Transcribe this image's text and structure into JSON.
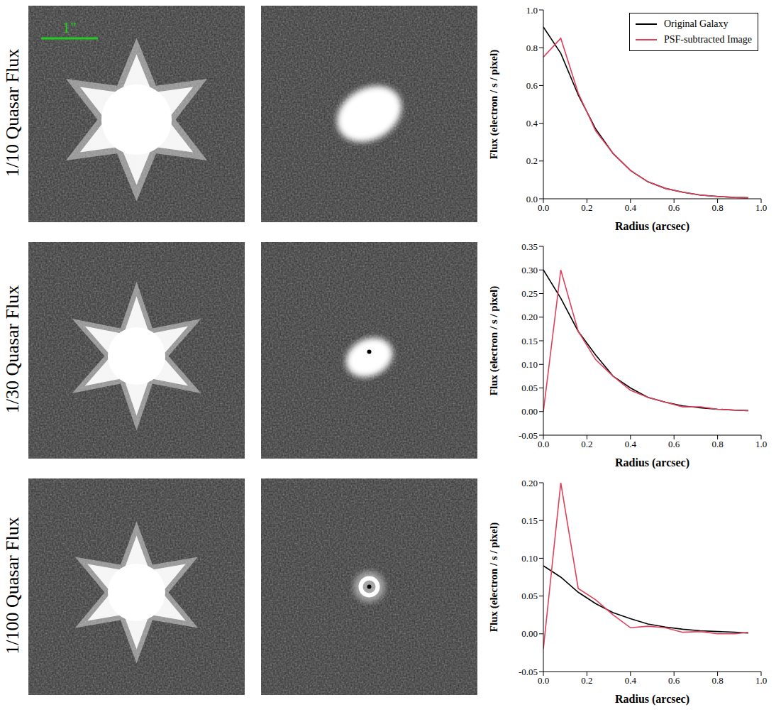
{
  "images": {
    "row_labels": [
      "1/10 Quasar Flux",
      "1/30 Quasar Flux",
      "1/100 Quasar Flux"
    ],
    "scale_bar_label": "1\""
  },
  "chart_data": [
    {
      "type": "line",
      "x_label": "Radius (arcsec)",
      "y_label": "Flux (electron / s / pixel)",
      "x": [
        0,
        0.08,
        0.16,
        0.24,
        0.32,
        0.4,
        0.48,
        0.56,
        0.64,
        0.72,
        0.8,
        0.88,
        0.94
      ],
      "series": [
        {
          "name": "Original Galaxy",
          "color": "#000000",
          "values": [
            0.91,
            0.77,
            0.55,
            0.37,
            0.24,
            0.15,
            0.09,
            0.055,
            0.035,
            0.02,
            0.012,
            0.007,
            0.005
          ]
        },
        {
          "name": "PSF-subtracted Image",
          "color": "#e0405a",
          "values": [
            0.75,
            0.85,
            0.56,
            0.36,
            0.24,
            0.15,
            0.09,
            0.055,
            0.035,
            0.02,
            0.012,
            0.007,
            0.005
          ]
        }
      ],
      "xlim": [
        0,
        1
      ],
      "ylim": [
        0,
        1
      ],
      "xticks": [
        {
          "value": 0,
          "label": "0.0"
        },
        0.2,
        0.4,
        0.6,
        0.8,
        {
          "value": 1,
          "label": "1.0"
        }
      ],
      "yticks": [
        {
          "value": 0,
          "label": "0.0"
        },
        0.2,
        0.4,
        0.6,
        0.8,
        {
          "value": 1,
          "label": "1.0"
        }
      ],
      "grid": false,
      "legend": "upper right"
    },
    {
      "type": "line",
      "x_label": "Radius (arcsec)",
      "y_label": "Flux (electron / s / pixel)",
      "x": [
        0,
        0.08,
        0.16,
        0.24,
        0.32,
        0.4,
        0.48,
        0.56,
        0.64,
        0.72,
        0.8,
        0.88,
        0.94
      ],
      "series": [
        {
          "name": "Original Galaxy",
          "color": "#000000",
          "values": [
            0.3,
            0.24,
            0.17,
            0.12,
            0.075,
            0.05,
            0.03,
            0.02,
            0.012,
            0.008,
            0.005,
            0.003,
            0.002
          ]
        },
        {
          "name": "PSF-subtracted Image",
          "color": "#e0405a",
          "values": [
            0.0,
            0.3,
            0.17,
            0.11,
            0.075,
            0.045,
            0.03,
            0.02,
            0.01,
            0.01,
            0.005,
            0.003,
            0.002
          ]
        }
      ],
      "xlim": [
        0,
        1
      ],
      "ylim": [
        -0.05,
        0.35
      ],
      "xticks": [
        {
          "value": 0,
          "label": "0.0"
        },
        0.2,
        0.4,
        0.6,
        0.8,
        {
          "value": 1,
          "label": "1.0"
        }
      ],
      "yticks": [
        -0.05,
        {
          "value": 0,
          "label": "0.00"
        },
        0.05,
        {
          "value": 0.1,
          "label": "0.10"
        },
        0.15,
        {
          "value": 0.2,
          "label": "0.20"
        },
        0.25,
        {
          "value": 0.3,
          "label": "0.30"
        },
        0.35
      ],
      "grid": false
    },
    {
      "type": "line",
      "x_label": "Radius (arcsec)",
      "y_label": "Flux (electron / s / pixel)",
      "x": [
        0,
        0.08,
        0.16,
        0.24,
        0.32,
        0.4,
        0.48,
        0.56,
        0.64,
        0.72,
        0.8,
        0.88,
        0.94
      ],
      "series": [
        {
          "name": "Original Galaxy",
          "color": "#000000",
          "values": [
            0.09,
            0.075,
            0.055,
            0.04,
            0.028,
            0.02,
            0.013,
            0.009,
            0.006,
            0.004,
            0.003,
            0.002,
            0.001
          ]
        },
        {
          "name": "PSF-subtracted Image",
          "color": "#e0405a",
          "values": [
            -0.02,
            0.2,
            0.06,
            0.045,
            0.025,
            0.008,
            0.01,
            0.008,
            0.002,
            0.003,
            0.0,
            0.0,
            0.002
          ]
        }
      ],
      "xlim": [
        0,
        1
      ],
      "ylim": [
        -0.05,
        0.2
      ],
      "xticks": [
        {
          "value": 0,
          "label": "0.0"
        },
        0.2,
        0.4,
        0.6,
        0.8,
        {
          "value": 1,
          "label": "1.0"
        }
      ],
      "yticks": [
        -0.05,
        {
          "value": 0,
          "label": "0.00"
        },
        0.05,
        {
          "value": 0.1,
          "label": "0.10"
        },
        0.15,
        {
          "value": 0.2,
          "label": "0.20"
        }
      ],
      "grid": false
    }
  ]
}
